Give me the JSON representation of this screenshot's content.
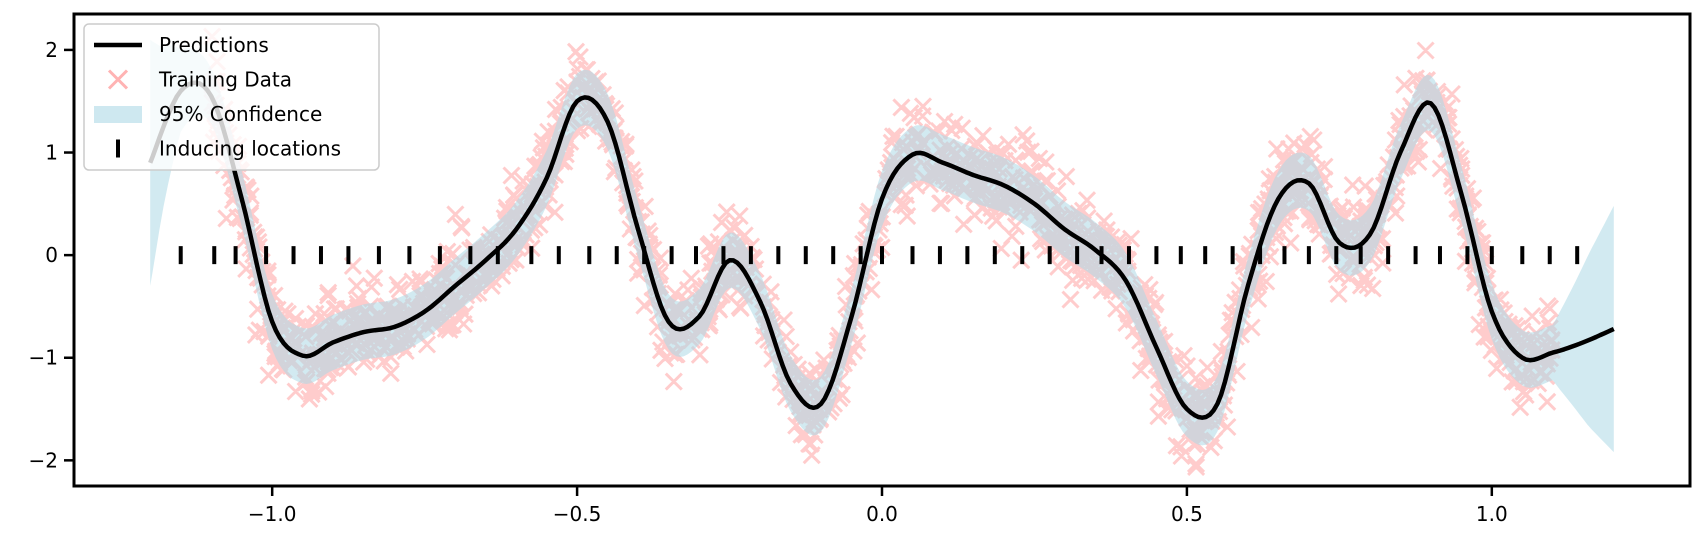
{
  "chart_data": {
    "type": "line",
    "title": "",
    "xlabel": "",
    "ylabel": "",
    "xlim": [
      -1.325,
      1.325
    ],
    "ylim": [
      -2.25,
      2.35
    ],
    "grid": false,
    "legend_position": "top-left",
    "x_ticks": [
      {
        "value": -1.0,
        "label": "−1.0"
      },
      {
        "value": -0.5,
        "label": "−0.5"
      },
      {
        "value": 0.0,
        "label": "0.0"
      },
      {
        "value": 0.5,
        "label": "0.5"
      },
      {
        "value": 1.0,
        "label": "1.0"
      }
    ],
    "y_ticks": [
      {
        "value": -2,
        "label": "−2"
      },
      {
        "value": -1,
        "label": "−1"
      },
      {
        "value": 0,
        "label": "0"
      },
      {
        "value": 1,
        "label": "1"
      },
      {
        "value": 2,
        "label": "2"
      }
    ],
    "legend": [
      {
        "label": "Predictions",
        "kind": "line",
        "color": "#000000"
      },
      {
        "label": "Training Data",
        "kind": "x-marker",
        "color": "#ffb3b3"
      },
      {
        "label": "95% Confidence",
        "kind": "band",
        "color": "#add8e6"
      },
      {
        "label": "Inducing locations",
        "kind": "tick-marker",
        "color": "#000000"
      }
    ],
    "colors": {
      "prediction": "#000000",
      "training": "#ff0000",
      "confidence": "#add8e6",
      "inducing": "#000000"
    },
    "predictions": {
      "x": [
        -1.2,
        -1.15,
        -1.1,
        -1.05,
        -1.0,
        -0.95,
        -0.9,
        -0.85,
        -0.8,
        -0.75,
        -0.7,
        -0.65,
        -0.6,
        -0.55,
        -0.5,
        -0.45,
        -0.4,
        -0.35,
        -0.3,
        -0.25,
        -0.2,
        -0.15,
        -0.1,
        -0.05,
        0.0,
        0.05,
        0.1,
        0.15,
        0.2,
        0.25,
        0.3,
        0.35,
        0.4,
        0.45,
        0.5,
        0.55,
        0.6,
        0.65,
        0.7,
        0.75,
        0.8,
        0.85,
        0.9,
        0.95,
        1.0,
        1.05,
        1.1,
        1.15,
        1.2
      ],
      "y": [
        0.9,
        1.6,
        1.55,
        0.55,
        -0.65,
        -0.98,
        -0.85,
        -0.75,
        -0.7,
        -0.55,
        -0.3,
        -0.05,
        0.25,
        0.75,
        1.5,
        1.3,
        0.25,
        -0.65,
        -0.6,
        -0.05,
        -0.45,
        -1.25,
        -1.45,
        -0.6,
        0.55,
        0.98,
        0.9,
        0.78,
        0.68,
        0.5,
        0.25,
        0.05,
        -0.25,
        -0.9,
        -1.5,
        -1.45,
        -0.3,
        0.55,
        0.7,
        0.12,
        0.2,
        1.0,
        1.48,
        0.6,
        -0.55,
        -1.0,
        -0.95,
        -0.85,
        -0.72
      ]
    },
    "confidence_halfwidth": {
      "x": [
        -1.2,
        -1.18,
        -1.15,
        -1.12,
        -1.1,
        1.1,
        1.13,
        1.16,
        1.2
      ],
      "w": [
        1.2,
        0.8,
        0.4,
        0.3,
        0.27,
        0.27,
        0.55,
        0.85,
        1.2
      ]
    },
    "training_data": {
      "x_range": [
        -1.1,
        1.1
      ],
      "noise_sd": 0.22
    },
    "inducing_x": [
      -1.15,
      -1.095,
      -1.06,
      -1.01,
      -0.965,
      -0.92,
      -0.875,
      -0.825,
      -0.775,
      -0.725,
      -0.675,
      -0.63,
      -0.575,
      -0.53,
      -0.48,
      -0.435,
      -0.39,
      -0.345,
      -0.305,
      -0.26,
      -0.215,
      -0.17,
      -0.125,
      -0.08,
      -0.035,
      0.0,
      0.05,
      0.095,
      0.14,
      0.185,
      0.23,
      0.275,
      0.32,
      0.36,
      0.405,
      0.45,
      0.49,
      0.53,
      0.575,
      0.62,
      0.66,
      0.7,
      0.745,
      0.785,
      0.83,
      0.875,
      0.915,
      0.96,
      1.0,
      1.05,
      1.095,
      1.14
    ]
  }
}
